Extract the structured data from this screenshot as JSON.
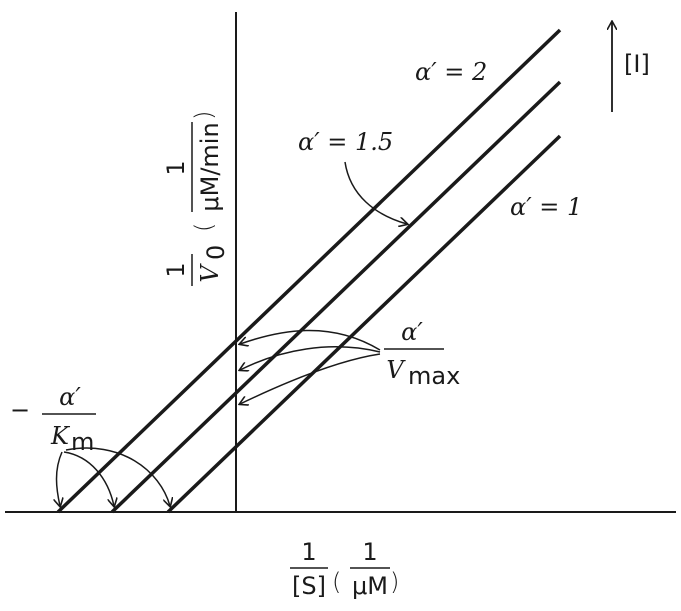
{
  "figure": {
    "y_axis_label": {
      "numerator": "1",
      "denominator": "V",
      "subscript": "0",
      "unit_num": "1",
      "unit_den": "μM/min"
    },
    "x_axis_label": {
      "numerator": "1",
      "denominator": "[S]",
      "unit_num": "1",
      "unit_den": "μM"
    },
    "lines": [
      {
        "label": "α′ = 2"
      },
      {
        "label": "α′ = 1.5"
      },
      {
        "label": "α′ = 1"
      }
    ],
    "inhibitor_arrow_label": "[I]",
    "y_intercept_label": {
      "numerator": "α′",
      "denominator": "V",
      "subscript": "max"
    },
    "x_intercept_label": {
      "sign": "−",
      "numerator": "α′",
      "denominator": "K",
      "subscript": "m"
    },
    "colors": {
      "ink": "#1a1a1a"
    }
  }
}
